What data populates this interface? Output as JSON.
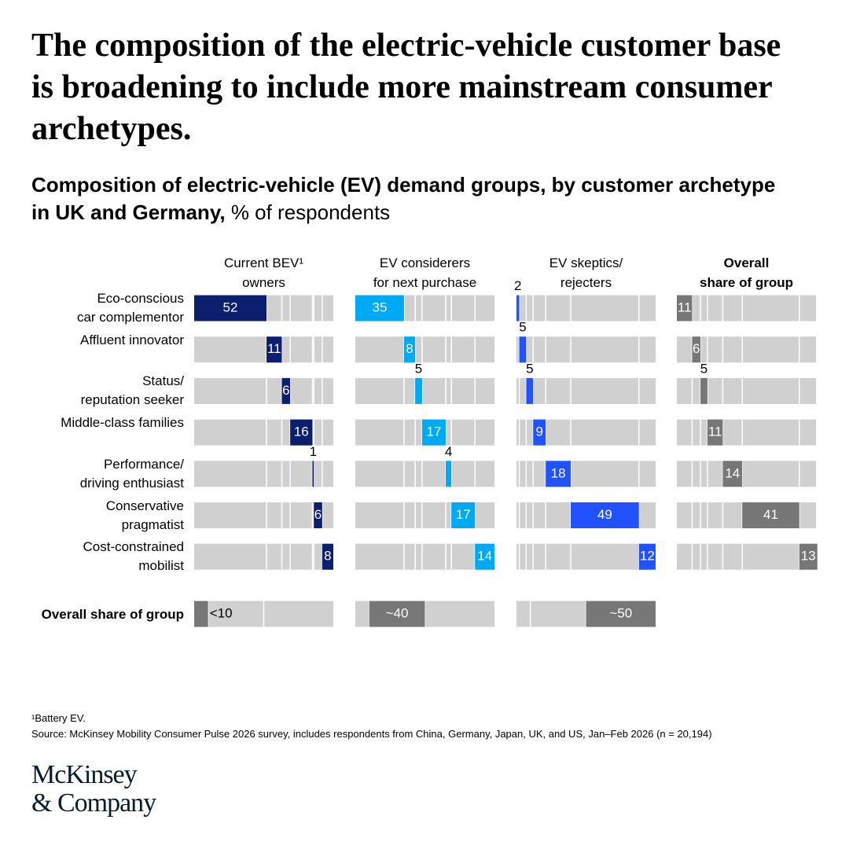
{
  "chart_data": {
    "type": "bar",
    "title": "The composition of the electric-vehicle customer base is broadening to include more mainstream consumer archetypes.",
    "subtitle": "Composition of electric-vehicle (EV) demand groups, by customer archetype in UK and Germany,",
    "subtitle_unit": "% of respondents",
    "categories": [
      "Eco-conscious\ncar complementor",
      "Affluent innovator",
      "Status/\nreputation seeker",
      "Middle-class families",
      "Performance/\ndriving enthusiast",
      "Conservative\npragmatist",
      "Cost-constrained\nmobilist"
    ],
    "series": [
      {
        "name": "Current BEV¹\nowners",
        "color": "#0b1f6e",
        "values": [
          52,
          11,
          6,
          16,
          1,
          6,
          8
        ]
      },
      {
        "name": "EV considerers\nfor next purchase",
        "color": "#00a9f4",
        "values": [
          35,
          8,
          5,
          17,
          4,
          17,
          14
        ]
      },
      {
        "name": "EV skeptics/\nrejecters",
        "color": "#2251ff",
        "values": [
          2,
          5,
          5,
          9,
          18,
          49,
          12
        ]
      },
      {
        "name": "Overall\nshare of group",
        "color": "#777777",
        "values": [
          11,
          6,
          5,
          11,
          14,
          41,
          13
        ]
      }
    ],
    "group_share": {
      "label": "Overall share of group",
      "color": "#777777",
      "values": [
        10,
        40,
        50
      ],
      "value_labels": [
        "<10",
        "~40",
        "~50"
      ]
    },
    "track_color": "#d0d0d0",
    "xlim": [
      0,
      100
    ]
  },
  "footnotes": [
    "¹Battery EV.",
    "Source: McKinsey Mobility Consumer Pulse 2026 survey, includes respondents from China, Germany, Japan, UK, and US, Jan–Feb 2026 (n = 20,194)"
  ],
  "logo": "McKinsey\n& Company"
}
